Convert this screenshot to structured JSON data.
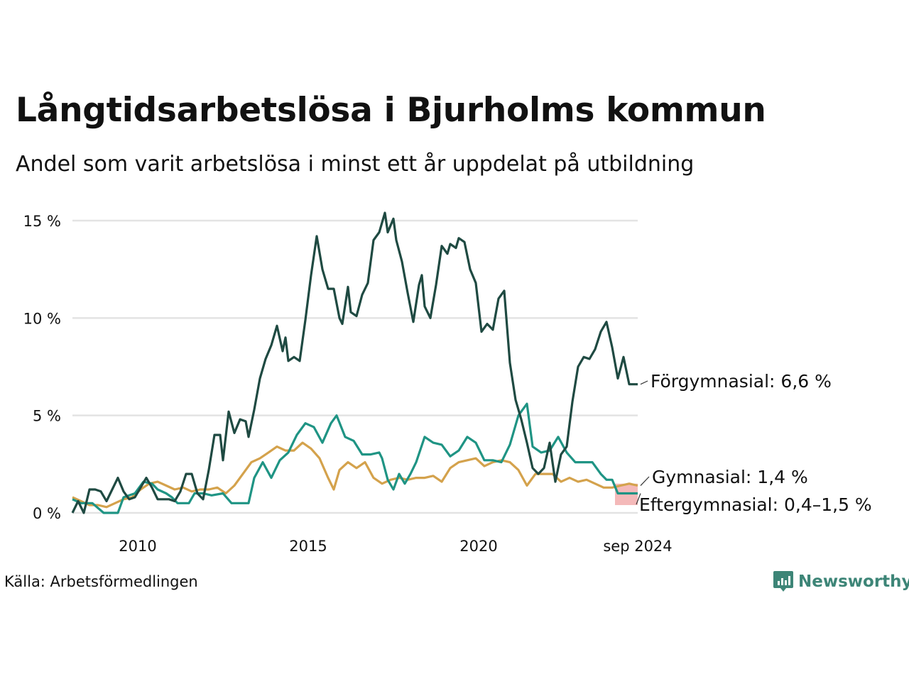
{
  "title": "Långtidsarbetslösa i Bjurholms kommun",
  "subtitle": "Andel som varit arbetslösa i minst ett år uppdelat på utbildning",
  "source": "Källa: Arbetsförmedlingen",
  "brand": {
    "name": "Newsworthy",
    "icon": "newsworthy-logo-icon"
  },
  "colors": {
    "forgymnasial": "#1f4a42",
    "gymnasial": "#d4a24c",
    "eftergymnasial": "#1f9484",
    "uncertainty": "#f4b9b9",
    "grid": "#e3e3e3"
  },
  "chart_data": {
    "type": "line",
    "title": "Långtidsarbetslösa i Bjurholms kommun",
    "subtitle": "Andel som varit arbetslösa i minst ett år uppdelat på utbildning",
    "x_start": "2008-02",
    "x_end": "2024-09",
    "ylim": [
      0,
      15
    ],
    "y_ticks": [
      {
        "value": 0,
        "label": "0 %"
      },
      {
        "value": 5,
        "label": "5 %"
      },
      {
        "value": 10,
        "label": "10 %"
      },
      {
        "value": 15,
        "label": "15 %"
      }
    ],
    "x_ticks": [
      {
        "date": "2010-01",
        "label": "2010"
      },
      {
        "date": "2015-01",
        "label": "2015"
      },
      {
        "date": "2020-01",
        "label": "2020"
      },
      {
        "date": "2024-09",
        "label": "sep 2024"
      }
    ],
    "grid": "horizontal",
    "series": [
      {
        "name": "Förgymnasial",
        "end_label": "Förgymnasial: 6,6 %",
        "color": "#1f4a42",
        "points": [
          [
            "2008-02",
            0.0
          ],
          [
            "2008-04",
            0.6
          ],
          [
            "2008-06",
            0.0
          ],
          [
            "2008-08",
            1.2
          ],
          [
            "2008-10",
            1.2
          ],
          [
            "2008-12",
            1.1
          ],
          [
            "2009-02",
            0.6
          ],
          [
            "2009-04",
            1.2
          ],
          [
            "2009-06",
            1.8
          ],
          [
            "2009-08",
            1.1
          ],
          [
            "2009-10",
            0.7
          ],
          [
            "2009-12",
            0.8
          ],
          [
            "2010-02",
            1.3
          ],
          [
            "2010-04",
            1.8
          ],
          [
            "2010-06",
            1.3
          ],
          [
            "2010-08",
            0.7
          ],
          [
            "2010-10",
            0.7
          ],
          [
            "2010-12",
            0.7
          ],
          [
            "2011-02",
            0.6
          ],
          [
            "2011-04",
            1.1
          ],
          [
            "2011-06",
            2.0
          ],
          [
            "2011-08",
            2.0
          ],
          [
            "2011-10",
            1.0
          ],
          [
            "2011-12",
            0.7
          ],
          [
            "2012-02",
            2.2
          ],
          [
            "2012-04",
            4.0
          ],
          [
            "2012-06",
            4.0
          ],
          [
            "2012-07",
            2.7
          ],
          [
            "2012-09",
            5.2
          ],
          [
            "2012-11",
            4.1
          ],
          [
            "2013-01",
            4.8
          ],
          [
            "2013-03",
            4.7
          ],
          [
            "2013-04",
            3.9
          ],
          [
            "2013-06",
            5.3
          ],
          [
            "2013-08",
            6.9
          ],
          [
            "2013-10",
            7.9
          ],
          [
            "2013-12",
            8.6
          ],
          [
            "2014-02",
            9.6
          ],
          [
            "2014-04",
            8.3
          ],
          [
            "2014-05",
            9.0
          ],
          [
            "2014-06",
            7.8
          ],
          [
            "2014-08",
            8.0
          ],
          [
            "2014-10",
            7.8
          ],
          [
            "2014-12",
            9.9
          ],
          [
            "2015-02",
            12.2
          ],
          [
            "2015-04",
            14.2
          ],
          [
            "2015-06",
            12.5
          ],
          [
            "2015-08",
            11.5
          ],
          [
            "2015-10",
            11.5
          ],
          [
            "2015-12",
            10.0
          ],
          [
            "2016-01",
            9.7
          ],
          [
            "2016-03",
            11.6
          ],
          [
            "2016-04",
            10.3
          ],
          [
            "2016-06",
            10.1
          ],
          [
            "2016-08",
            11.2
          ],
          [
            "2016-10",
            11.8
          ],
          [
            "2016-12",
            14.0
          ],
          [
            "2017-02",
            14.4
          ],
          [
            "2017-04",
            15.4
          ],
          [
            "2017-05",
            14.4
          ],
          [
            "2017-07",
            15.1
          ],
          [
            "2017-08",
            14.0
          ],
          [
            "2017-10",
            12.9
          ],
          [
            "2017-12",
            11.3
          ],
          [
            "2018-02",
            9.8
          ],
          [
            "2018-04",
            11.7
          ],
          [
            "2018-05",
            12.2
          ],
          [
            "2018-06",
            10.6
          ],
          [
            "2018-08",
            10.0
          ],
          [
            "2018-10",
            11.7
          ],
          [
            "2018-12",
            13.7
          ],
          [
            "2019-02",
            13.3
          ],
          [
            "2019-03",
            13.8
          ],
          [
            "2019-05",
            13.6
          ],
          [
            "2019-06",
            14.1
          ],
          [
            "2019-08",
            13.9
          ],
          [
            "2019-10",
            12.5
          ],
          [
            "2019-12",
            11.8
          ],
          [
            "2020-02",
            9.3
          ],
          [
            "2020-04",
            9.7
          ],
          [
            "2020-06",
            9.4
          ],
          [
            "2020-08",
            11.0
          ],
          [
            "2020-10",
            11.4
          ],
          [
            "2020-12",
            7.7
          ],
          [
            "2021-02",
            5.8
          ],
          [
            "2021-04",
            4.8
          ],
          [
            "2021-06",
            3.6
          ],
          [
            "2021-08",
            2.3
          ],
          [
            "2021-10",
            2.0
          ],
          [
            "2021-12",
            2.3
          ],
          [
            "2022-02",
            3.6
          ],
          [
            "2022-04",
            1.6
          ],
          [
            "2022-06",
            3.0
          ],
          [
            "2022-08",
            3.4
          ],
          [
            "2022-10",
            5.7
          ],
          [
            "2022-12",
            7.5
          ],
          [
            "2023-02",
            8.0
          ],
          [
            "2023-04",
            7.9
          ],
          [
            "2023-06",
            8.4
          ],
          [
            "2023-08",
            9.3
          ],
          [
            "2023-10",
            9.8
          ],
          [
            "2023-12",
            8.5
          ],
          [
            "2024-02",
            6.9
          ],
          [
            "2024-04",
            8.0
          ],
          [
            "2024-06",
            6.6
          ],
          [
            "2024-09",
            6.6
          ]
        ]
      },
      {
        "name": "Gymnasial",
        "end_label": "Gymnasial: 1,4 %",
        "color": "#d4a24c",
        "points": [
          [
            "2008-02",
            0.8
          ],
          [
            "2008-05",
            0.6
          ],
          [
            "2008-08",
            0.4
          ],
          [
            "2008-11",
            0.4
          ],
          [
            "2009-02",
            0.3
          ],
          [
            "2009-05",
            0.5
          ],
          [
            "2009-08",
            0.7
          ],
          [
            "2009-11",
            0.8
          ],
          [
            "2010-02",
            1.2
          ],
          [
            "2010-05",
            1.5
          ],
          [
            "2010-08",
            1.6
          ],
          [
            "2010-11",
            1.4
          ],
          [
            "2011-02",
            1.2
          ],
          [
            "2011-05",
            1.3
          ],
          [
            "2011-08",
            1.1
          ],
          [
            "2011-11",
            1.2
          ],
          [
            "2012-02",
            1.2
          ],
          [
            "2012-05",
            1.3
          ],
          [
            "2012-08",
            1.0
          ],
          [
            "2012-11",
            1.4
          ],
          [
            "2013-02",
            2.0
          ],
          [
            "2013-05",
            2.6
          ],
          [
            "2013-08",
            2.8
          ],
          [
            "2013-11",
            3.1
          ],
          [
            "2014-02",
            3.4
          ],
          [
            "2014-05",
            3.2
          ],
          [
            "2014-08",
            3.2
          ],
          [
            "2014-11",
            3.6
          ],
          [
            "2015-02",
            3.3
          ],
          [
            "2015-05",
            2.8
          ],
          [
            "2015-08",
            1.8
          ],
          [
            "2015-10",
            1.2
          ],
          [
            "2015-12",
            2.2
          ],
          [
            "2016-03",
            2.6
          ],
          [
            "2016-06",
            2.3
          ],
          [
            "2016-09",
            2.6
          ],
          [
            "2016-12",
            1.8
          ],
          [
            "2017-03",
            1.5
          ],
          [
            "2017-06",
            1.7
          ],
          [
            "2017-09",
            1.8
          ],
          [
            "2017-12",
            1.7
          ],
          [
            "2018-03",
            1.8
          ],
          [
            "2018-06",
            1.8
          ],
          [
            "2018-09",
            1.9
          ],
          [
            "2018-12",
            1.6
          ],
          [
            "2019-03",
            2.3
          ],
          [
            "2019-06",
            2.6
          ],
          [
            "2019-09",
            2.7
          ],
          [
            "2019-12",
            2.8
          ],
          [
            "2020-03",
            2.4
          ],
          [
            "2020-06",
            2.6
          ],
          [
            "2020-09",
            2.7
          ],
          [
            "2020-12",
            2.6
          ],
          [
            "2021-03",
            2.2
          ],
          [
            "2021-06",
            1.4
          ],
          [
            "2021-09",
            2.0
          ],
          [
            "2021-12",
            2.0
          ],
          [
            "2022-03",
            2.0
          ],
          [
            "2022-06",
            1.6
          ],
          [
            "2022-09",
            1.8
          ],
          [
            "2022-12",
            1.6
          ],
          [
            "2023-03",
            1.7
          ],
          [
            "2023-06",
            1.5
          ],
          [
            "2023-09",
            1.3
          ],
          [
            "2023-12",
            1.3
          ],
          [
            "2024-03",
            1.4
          ],
          [
            "2024-06",
            1.5
          ],
          [
            "2024-09",
            1.4
          ]
        ]
      },
      {
        "name": "Eftergymnasial",
        "end_label": "Eftergymnasial: 0,4–1,5 %",
        "color": "#1f9484",
        "range": [
          0.4,
          1.5
        ],
        "range_start": "2024-01",
        "points": [
          [
            "2008-02",
            0.7
          ],
          [
            "2008-05",
            0.5
          ],
          [
            "2008-09",
            0.5
          ],
          [
            "2009-01",
            0.0
          ],
          [
            "2009-06",
            0.0
          ],
          [
            "2009-08",
            0.8
          ],
          [
            "2009-12",
            1.0
          ],
          [
            "2010-03",
            1.6
          ],
          [
            "2010-06",
            1.5
          ],
          [
            "2010-08",
            1.2
          ],
          [
            "2010-11",
            1.0
          ],
          [
            "2011-01",
            0.8
          ],
          [
            "2011-03",
            0.5
          ],
          [
            "2011-07",
            0.5
          ],
          [
            "2011-09",
            1.0
          ],
          [
            "2011-12",
            1.0
          ],
          [
            "2012-03",
            0.9
          ],
          [
            "2012-07",
            1.0
          ],
          [
            "2012-10",
            0.5
          ],
          [
            "2013-01",
            0.5
          ],
          [
            "2013-04",
            0.5
          ],
          [
            "2013-06",
            1.8
          ],
          [
            "2013-09",
            2.6
          ],
          [
            "2013-12",
            1.8
          ],
          [
            "2014-03",
            2.7
          ],
          [
            "2014-06",
            3.1
          ],
          [
            "2014-09",
            4.0
          ],
          [
            "2014-12",
            4.6
          ],
          [
            "2015-03",
            4.4
          ],
          [
            "2015-06",
            3.6
          ],
          [
            "2015-09",
            4.6
          ],
          [
            "2015-11",
            5.0
          ],
          [
            "2016-02",
            3.9
          ],
          [
            "2016-05",
            3.7
          ],
          [
            "2016-08",
            3.0
          ],
          [
            "2016-11",
            3.0
          ],
          [
            "2017-02",
            3.1
          ],
          [
            "2017-03",
            2.8
          ],
          [
            "2017-05",
            1.7
          ],
          [
            "2017-07",
            1.2
          ],
          [
            "2017-09",
            2.0
          ],
          [
            "2017-11",
            1.5
          ],
          [
            "2018-01",
            2.0
          ],
          [
            "2018-03",
            2.6
          ],
          [
            "2018-06",
            3.9
          ],
          [
            "2018-09",
            3.6
          ],
          [
            "2018-12",
            3.5
          ],
          [
            "2019-03",
            2.9
          ],
          [
            "2019-06",
            3.2
          ],
          [
            "2019-09",
            3.9
          ],
          [
            "2019-12",
            3.6
          ],
          [
            "2020-03",
            2.7
          ],
          [
            "2020-06",
            2.7
          ],
          [
            "2020-09",
            2.6
          ],
          [
            "2020-12",
            3.5
          ],
          [
            "2021-03",
            5.0
          ],
          [
            "2021-06",
            5.6
          ],
          [
            "2021-08",
            3.4
          ],
          [
            "2021-11",
            3.1
          ],
          [
            "2022-02",
            3.2
          ],
          [
            "2022-05",
            3.9
          ],
          [
            "2022-08",
            3.1
          ],
          [
            "2022-11",
            2.6
          ],
          [
            "2023-02",
            2.6
          ],
          [
            "2023-05",
            2.6
          ],
          [
            "2023-08",
            2.0
          ],
          [
            "2023-10",
            1.7
          ],
          [
            "2023-12",
            1.7
          ],
          [
            "2024-02",
            1.0
          ],
          [
            "2024-09",
            1.0
          ]
        ]
      }
    ]
  }
}
